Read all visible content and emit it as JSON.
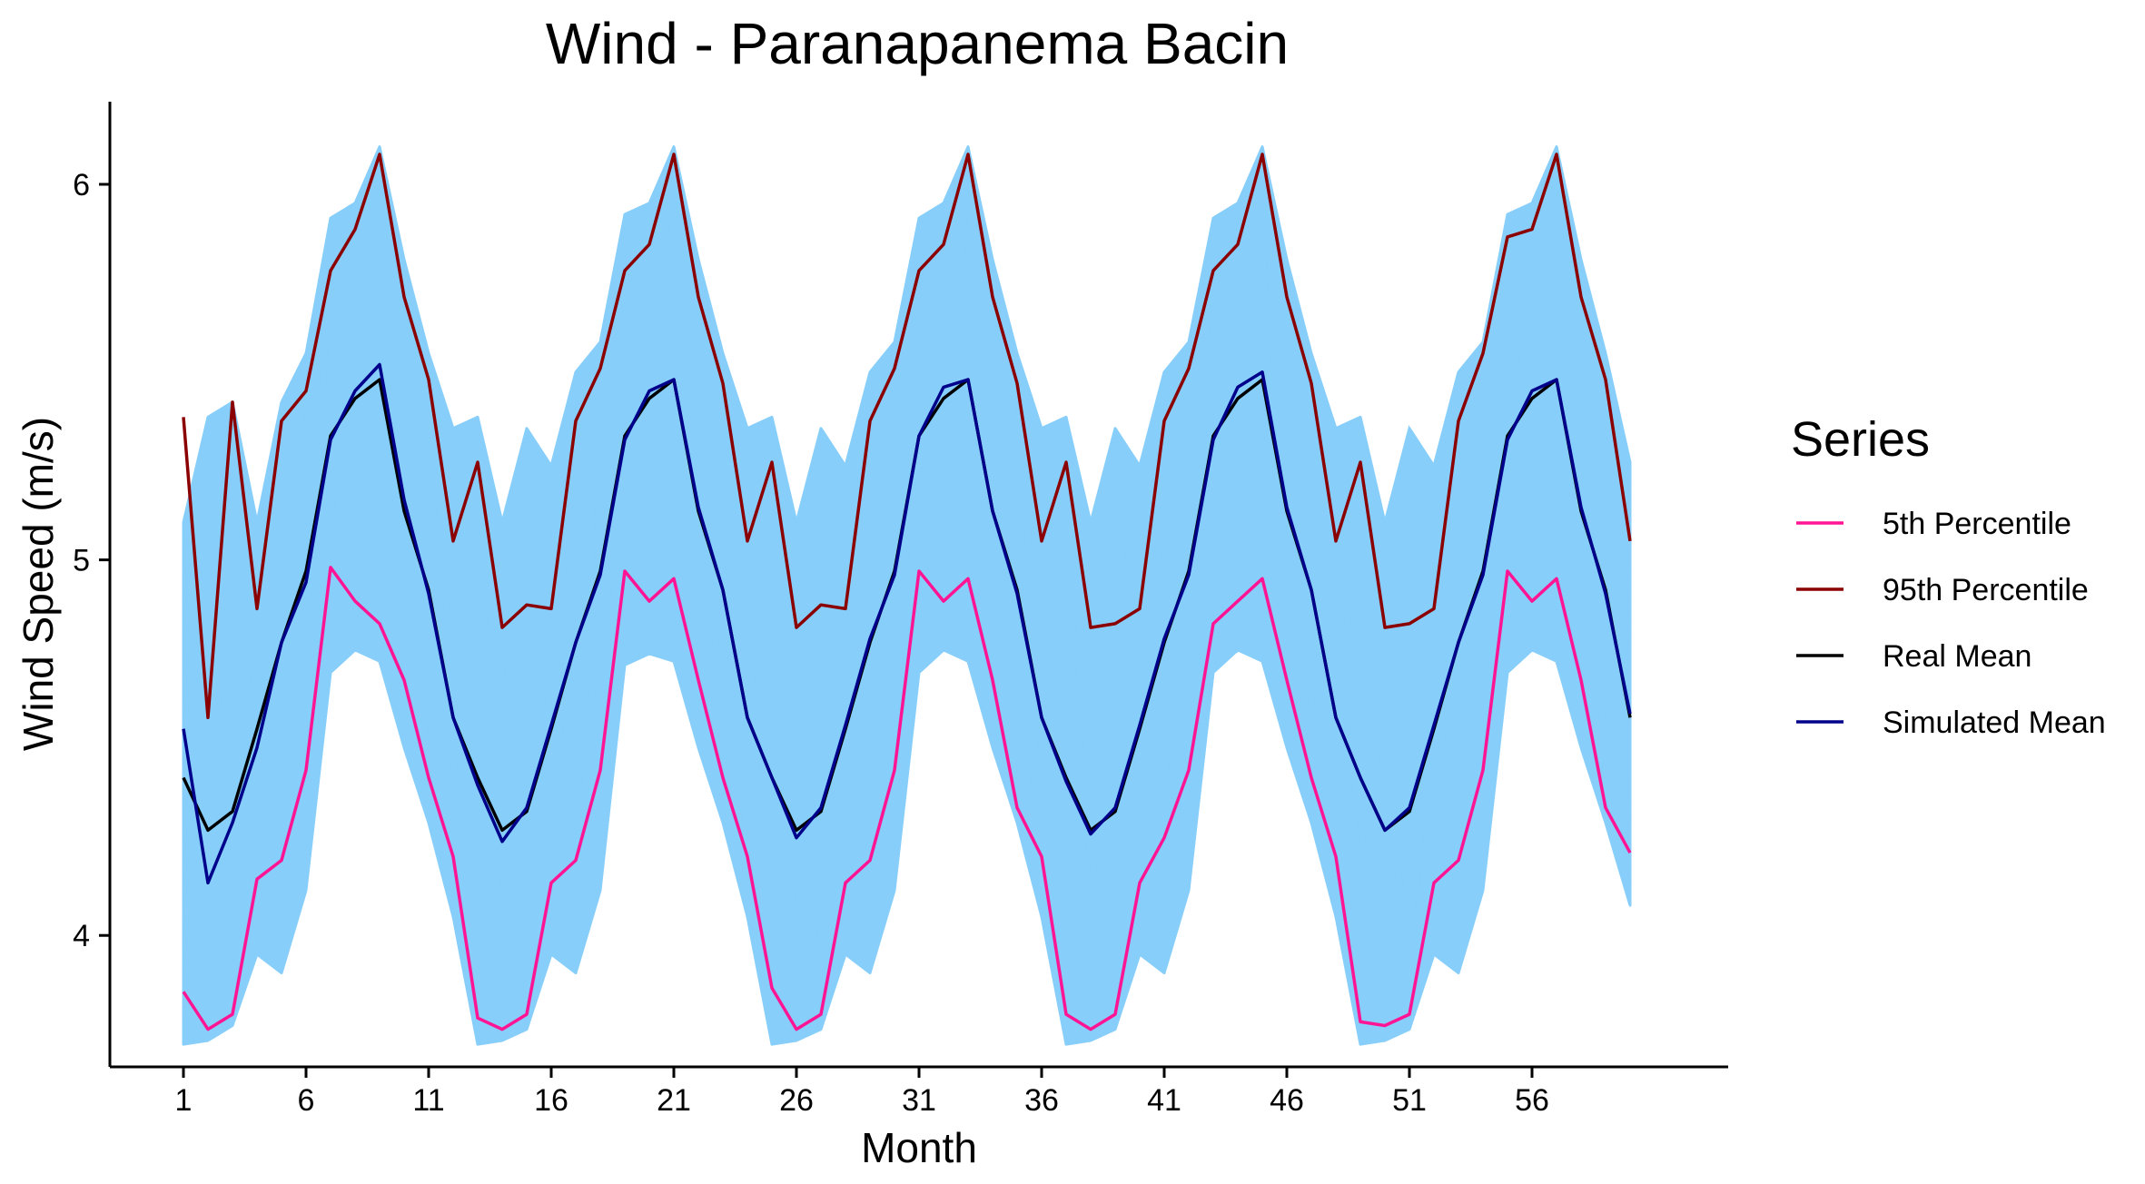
{
  "chart_data": {
    "type": "line",
    "title": "Wind - Paranapanema Bacin",
    "xlabel": "Month",
    "ylabel": "Wind Speed (m/s)",
    "xlim": [
      -2,
      64
    ],
    "ylim": [
      3.65,
      6.22
    ],
    "x_ticks": [
      1,
      6,
      11,
      16,
      21,
      26,
      31,
      36,
      41,
      46,
      51,
      56
    ],
    "y_ticks": [
      4,
      5,
      6
    ],
    "grid": false,
    "legend": {
      "title": "Series",
      "position": "right"
    },
    "x": [
      1,
      2,
      3,
      4,
      5,
      6,
      7,
      8,
      9,
      10,
      11,
      12,
      13,
      14,
      15,
      16,
      17,
      18,
      19,
      20,
      21,
      22,
      23,
      24,
      25,
      26,
      27,
      28,
      29,
      30,
      31,
      32,
      33,
      34,
      35,
      36,
      37,
      38,
      39,
      40,
      41,
      42,
      43,
      44,
      45,
      46,
      47,
      48,
      49,
      50,
      51,
      52,
      53,
      54,
      55,
      56,
      57,
      58,
      59,
      60
    ],
    "series": [
      {
        "name": "5th Percentile",
        "color": "#ff1493",
        "values": [
          3.85,
          3.75,
          3.79,
          4.15,
          4.2,
          4.44,
          4.98,
          4.89,
          4.83,
          4.68,
          4.42,
          4.21,
          3.78,
          3.75,
          3.79,
          4.14,
          4.2,
          4.44,
          4.97,
          4.89,
          4.95,
          4.68,
          4.42,
          4.21,
          3.86,
          3.75,
          3.79,
          4.14,
          4.2,
          4.44,
          4.97,
          4.89,
          4.95,
          4.68,
          4.34,
          4.21,
          3.79,
          3.75,
          3.79,
          4.14,
          4.26,
          4.44,
          4.83,
          4.89,
          4.95,
          4.68,
          4.42,
          4.21,
          3.77,
          3.76,
          3.79,
          4.14,
          4.2,
          4.44,
          4.97,
          4.89,
          4.95,
          4.68,
          4.34,
          4.22
        ]
      },
      {
        "name": "95th Percentile",
        "color": "#8b0000",
        "values": [
          5.38,
          4.58,
          5.42,
          4.87,
          5.37,
          5.45,
          5.77,
          5.88,
          6.08,
          5.7,
          5.48,
          5.05,
          5.26,
          4.82,
          4.88,
          4.87,
          5.37,
          5.51,
          5.77,
          5.84,
          6.08,
          5.7,
          5.47,
          5.05,
          5.26,
          4.82,
          4.88,
          4.87,
          5.37,
          5.51,
          5.77,
          5.84,
          6.08,
          5.7,
          5.47,
          5.05,
          5.26,
          4.82,
          4.83,
          4.87,
          5.37,
          5.51,
          5.77,
          5.84,
          6.08,
          5.7,
          5.47,
          5.05,
          5.26,
          4.82,
          4.83,
          4.87,
          5.37,
          5.55,
          5.86,
          5.88,
          6.08,
          5.7,
          5.48,
          5.05
        ]
      },
      {
        "name": "Real Mean",
        "color": "#000000",
        "values": [
          4.42,
          4.28,
          4.33,
          4.55,
          4.78,
          4.97,
          5.33,
          5.43,
          5.48,
          5.13,
          4.92,
          4.58,
          4.42,
          4.28,
          4.33,
          4.55,
          4.78,
          4.97,
          5.33,
          5.43,
          5.48,
          5.13,
          4.92,
          4.58,
          4.42,
          4.28,
          4.33,
          4.55,
          4.78,
          4.97,
          5.33,
          5.43,
          5.48,
          5.13,
          4.92,
          4.58,
          4.42,
          4.28,
          4.33,
          4.55,
          4.78,
          4.97,
          5.33,
          5.43,
          5.48,
          5.13,
          4.92,
          4.58,
          4.42,
          4.28,
          4.33,
          4.55,
          4.78,
          4.97,
          5.33,
          5.43,
          5.48,
          5.13,
          4.92,
          4.58
        ]
      },
      {
        "name": "Simulated Mean",
        "color": "#00008b",
        "values": [
          4.55,
          4.14,
          4.3,
          4.5,
          4.78,
          4.94,
          5.32,
          5.45,
          5.52,
          5.16,
          4.91,
          4.58,
          4.4,
          4.25,
          4.34,
          4.56,
          4.78,
          4.96,
          5.32,
          5.45,
          5.48,
          5.14,
          4.92,
          4.58,
          4.42,
          4.26,
          4.34,
          4.56,
          4.79,
          4.96,
          5.33,
          5.46,
          5.48,
          5.13,
          4.91,
          4.58,
          4.41,
          4.27,
          4.34,
          4.56,
          4.79,
          4.96,
          5.32,
          5.46,
          5.5,
          5.14,
          4.92,
          4.58,
          4.42,
          4.28,
          4.34,
          4.56,
          4.78,
          4.96,
          5.32,
          5.45,
          5.48,
          5.14,
          4.91,
          4.59
        ]
      }
    ],
    "envelope": {
      "color": "#87cefa",
      "lower": [
        3.71,
        3.72,
        3.76,
        3.95,
        3.9,
        4.12,
        4.7,
        4.76,
        4.73,
        4.5,
        4.3,
        4.05,
        3.71,
        3.72,
        3.75,
        3.95,
        3.9,
        4.12,
        4.72,
        4.75,
        4.73,
        4.5,
        4.3,
        4.05,
        3.71,
        3.72,
        3.75,
        3.95,
        3.9,
        4.12,
        4.7,
        4.76,
        4.73,
        4.5,
        4.3,
        4.05,
        3.71,
        3.72,
        3.75,
        3.95,
        3.9,
        4.12,
        4.7,
        4.76,
        4.73,
        4.5,
        4.3,
        4.05,
        3.71,
        3.72,
        3.75,
        3.95,
        3.9,
        4.12,
        4.7,
        4.76,
        4.73,
        4.5,
        4.3,
        4.08
      ],
      "upper": [
        5.1,
        5.38,
        5.42,
        5.1,
        5.42,
        5.55,
        5.91,
        5.95,
        6.1,
        5.8,
        5.55,
        5.35,
        5.38,
        5.1,
        5.35,
        5.25,
        5.5,
        5.58,
        5.92,
        5.95,
        6.1,
        5.8,
        5.55,
        5.35,
        5.38,
        5.1,
        5.35,
        5.25,
        5.5,
        5.58,
        5.91,
        5.95,
        6.1,
        5.8,
        5.55,
        5.35,
        5.38,
        5.1,
        5.35,
        5.25,
        5.5,
        5.58,
        5.91,
        5.95,
        6.1,
        5.8,
        5.55,
        5.35,
        5.38,
        5.1,
        5.35,
        5.25,
        5.5,
        5.58,
        5.92,
        5.95,
        6.1,
        5.8,
        5.55,
        5.26
      ]
    }
  }
}
